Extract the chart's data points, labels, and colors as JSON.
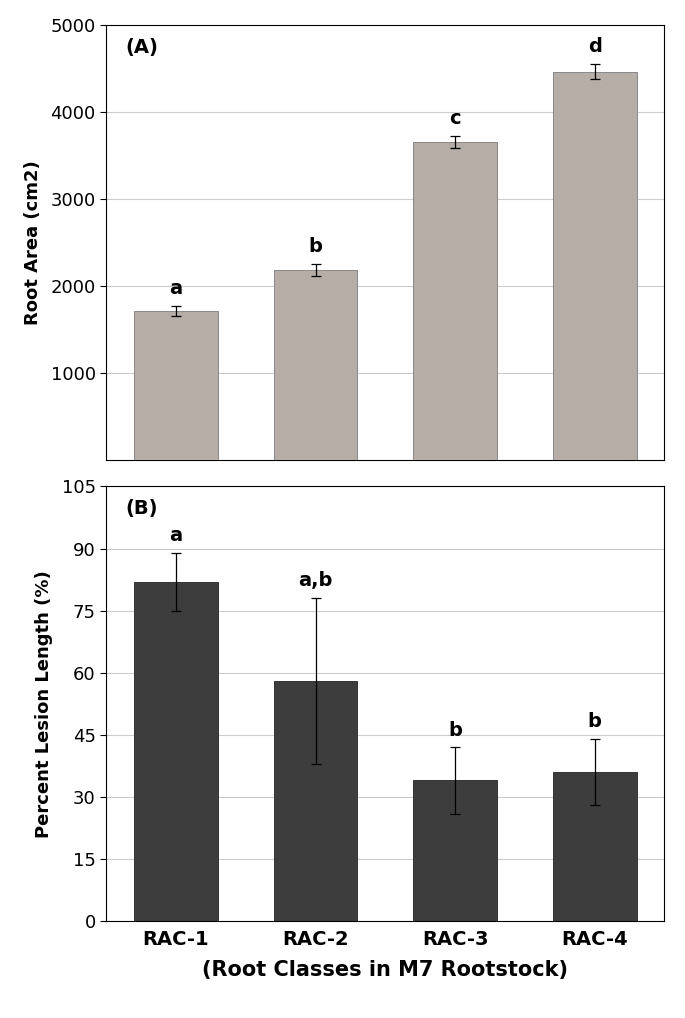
{
  "panel_A": {
    "categories": [
      "RAC-1",
      "RAC-2",
      "RAC-3",
      "RAC-4"
    ],
    "values": [
      1720,
      2190,
      3660,
      4470
    ],
    "errors": [
      55,
      65,
      70,
      85
    ],
    "sig_labels": [
      "a",
      "b",
      "c",
      "d"
    ],
    "ylabel": "Root Area (cm2)",
    "panel_label": "(A)",
    "ylim": [
      0,
      5000
    ],
    "yticks": [
      1000,
      2000,
      3000,
      4000,
      5000
    ],
    "bar_color": "#b5ada6",
    "bar_edge_color": "#888888"
  },
  "panel_B": {
    "categories": [
      "RAC-1",
      "RAC-2",
      "RAC-3",
      "RAC-4"
    ],
    "values": [
      82,
      58,
      34,
      36
    ],
    "errors": [
      7,
      20,
      8,
      8
    ],
    "sig_labels": [
      "a",
      "a,b",
      "b",
      "b"
    ],
    "ylabel": "Percent Lesion Length (%)",
    "panel_label": "(B)",
    "ylim": [
      0,
      105
    ],
    "yticks": [
      0,
      15,
      30,
      45,
      60,
      75,
      90,
      105
    ],
    "bar_color": "#3d3d3d",
    "bar_edge_color": "#333333"
  },
  "categories": [
    "RAC-1",
    "RAC-2",
    "RAC-3",
    "RAC-4"
  ],
  "xlabel_main": "RAC-1          RAC-2          RAC-3          RAC-4",
  "xlabel_sub": "(Root Classes in M7 Rootstock)",
  "grid_color": "#cccccc",
  "background_color": "#ffffff",
  "sig_fontsize": 14,
  "axis_label_fontsize": 13,
  "tick_fontsize": 13,
  "panel_label_fontsize": 14,
  "xtick_fontsize": 14,
  "xlabel_fontsize": 15,
  "bar_width": 0.6
}
